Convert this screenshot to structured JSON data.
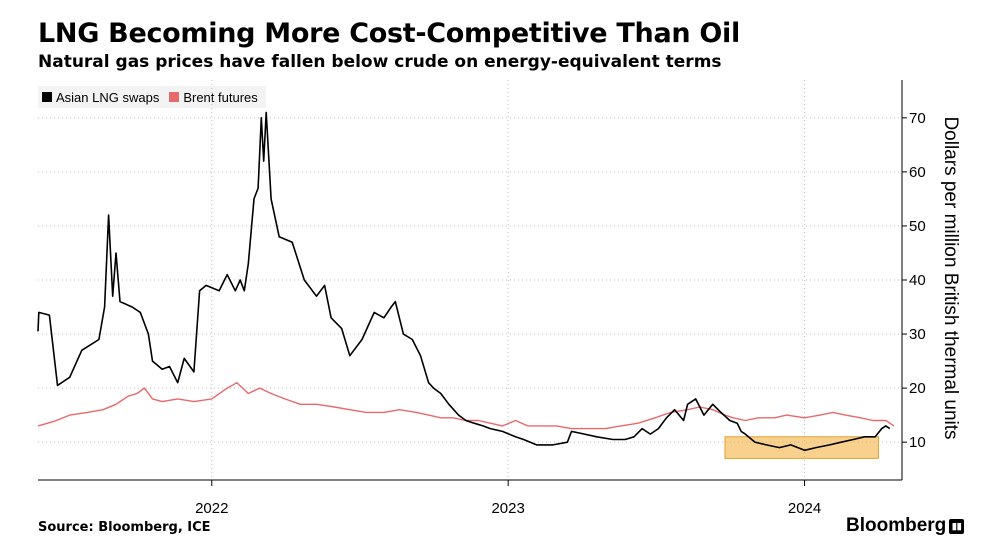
{
  "header": {
    "title": "LNG Becoming More Cost-Competitive Than Oil",
    "subtitle": "Natural gas prices have fallen below crude on energy-equivalent terms"
  },
  "footer": {
    "source": "Source: Bloomberg, ICE",
    "brand": "Bloomberg",
    "brand_icon": "bloomberg-terminal-icon"
  },
  "chart_data": {
    "type": "line",
    "ylabel": "Dollars per million British thermal units",
    "ylim": [
      3,
      77
    ],
    "yticks": [
      10,
      20,
      30,
      40,
      50,
      60,
      70
    ],
    "y_axis_position": "right",
    "xlim": [
      "2021-06-01",
      "2024-04-30"
    ],
    "xticks": [
      {
        "label": "2022",
        "date": "2022-01-01"
      },
      {
        "label": "2023",
        "date": "2023-01-01"
      },
      {
        "label": "2024",
        "date": "2024-01-01"
      }
    ],
    "grid": true,
    "legend_placement": "top-left",
    "highlight": {
      "x": [
        "2023-09-25",
        "2024-04-01"
      ],
      "y": [
        7,
        11
      ],
      "color": "#f5b342"
    },
    "series": [
      {
        "name": "Asian LNG swaps",
        "color": "#000000",
        "points": [
          [
            "2021-06-01",
            30.5
          ],
          [
            "2021-06-02",
            34
          ],
          [
            "2021-06-15",
            33.5
          ],
          [
            "2021-06-25",
            20.5
          ],
          [
            "2021-07-10",
            22
          ],
          [
            "2021-07-25",
            27
          ],
          [
            "2021-08-15",
            29
          ],
          [
            "2021-08-22",
            35
          ],
          [
            "2021-08-27",
            52
          ],
          [
            "2021-09-01",
            37
          ],
          [
            "2021-09-05",
            45
          ],
          [
            "2021-09-10",
            36
          ],
          [
            "2021-09-25",
            35
          ],
          [
            "2021-10-05",
            34
          ],
          [
            "2021-10-15",
            30
          ],
          [
            "2021-10-20",
            25
          ],
          [
            "2021-11-01",
            23.5
          ],
          [
            "2021-11-10",
            24
          ],
          [
            "2021-11-20",
            21
          ],
          [
            "2021-11-28",
            25.5
          ],
          [
            "2021-12-10",
            23
          ],
          [
            "2021-12-17",
            38
          ],
          [
            "2021-12-25",
            39
          ],
          [
            "2022-01-10",
            38
          ],
          [
            "2022-01-20",
            41
          ],
          [
            "2022-01-30",
            38
          ],
          [
            "2022-02-05",
            40
          ],
          [
            "2022-02-10",
            38
          ],
          [
            "2022-02-15",
            43
          ],
          [
            "2022-02-22",
            55
          ],
          [
            "2022-02-27",
            57
          ],
          [
            "2022-03-03",
            70
          ],
          [
            "2022-03-06",
            62
          ],
          [
            "2022-03-09",
            71
          ],
          [
            "2022-03-15",
            55
          ],
          [
            "2022-03-25",
            48
          ],
          [
            "2022-04-10",
            47
          ],
          [
            "2022-04-25",
            40
          ],
          [
            "2022-05-10",
            37
          ],
          [
            "2022-05-20",
            39
          ],
          [
            "2022-05-28",
            33
          ],
          [
            "2022-06-10",
            31
          ],
          [
            "2022-06-20",
            26
          ],
          [
            "2022-07-05",
            29
          ],
          [
            "2022-07-20",
            34
          ],
          [
            "2022-08-01",
            33
          ],
          [
            "2022-08-10",
            35
          ],
          [
            "2022-08-15",
            36
          ],
          [
            "2022-08-25",
            30
          ],
          [
            "2022-09-05",
            29
          ],
          [
            "2022-09-15",
            26
          ],
          [
            "2022-09-25",
            21
          ],
          [
            "2022-10-01",
            20
          ],
          [
            "2022-10-10",
            19
          ],
          [
            "2022-10-20",
            17
          ],
          [
            "2022-11-01",
            15
          ],
          [
            "2022-11-10",
            14
          ],
          [
            "2022-11-20",
            13.5
          ],
          [
            "2022-12-01",
            13
          ],
          [
            "2022-12-10",
            12.5
          ],
          [
            "2022-12-25",
            12
          ],
          [
            "2023-01-10",
            11
          ],
          [
            "2023-01-20",
            10.5
          ],
          [
            "2023-02-05",
            9.5
          ],
          [
            "2023-02-25",
            9.5
          ],
          [
            "2023-03-15",
            10
          ],
          [
            "2023-03-20",
            12
          ],
          [
            "2023-04-05",
            11.5
          ],
          [
            "2023-04-20",
            11
          ],
          [
            "2023-05-10",
            10.5
          ],
          [
            "2023-05-25",
            10.5
          ],
          [
            "2023-06-05",
            11
          ],
          [
            "2023-06-15",
            12.5
          ],
          [
            "2023-06-25",
            11.5
          ],
          [
            "2023-07-05",
            12.5
          ],
          [
            "2023-07-15",
            14.5
          ],
          [
            "2023-07-25",
            16
          ],
          [
            "2023-08-05",
            14
          ],
          [
            "2023-08-10",
            17
          ],
          [
            "2023-08-20",
            18
          ],
          [
            "2023-08-30",
            15
          ],
          [
            "2023-09-10",
            17
          ],
          [
            "2023-09-20",
            15.5
          ],
          [
            "2023-10-01",
            14
          ],
          [
            "2023-10-10",
            13.5
          ],
          [
            "2023-10-15",
            12
          ],
          [
            "2023-10-20",
            11.5
          ],
          [
            "2023-11-01",
            10
          ],
          [
            "2023-11-15",
            9.5
          ],
          [
            "2023-12-01",
            9
          ],
          [
            "2023-12-15",
            9.5
          ],
          [
            "2024-01-01",
            8.5
          ],
          [
            "2024-01-15",
            9
          ],
          [
            "2024-02-01",
            9.5
          ],
          [
            "2024-02-15",
            10
          ],
          [
            "2024-03-01",
            10.5
          ],
          [
            "2024-03-15",
            11
          ],
          [
            "2024-03-28",
            11
          ],
          [
            "2024-04-05",
            12.5
          ],
          [
            "2024-04-10",
            13
          ],
          [
            "2024-04-15",
            12.5
          ]
        ]
      },
      {
        "name": "Brent futures",
        "color": "#e8696c",
        "points": [
          [
            "2021-06-01",
            13
          ],
          [
            "2021-06-20",
            13.8
          ],
          [
            "2021-07-10",
            15
          ],
          [
            "2021-08-01",
            15.5
          ],
          [
            "2021-08-20",
            16
          ],
          [
            "2021-09-05",
            17
          ],
          [
            "2021-09-20",
            18.5
          ],
          [
            "2021-10-01",
            19
          ],
          [
            "2021-10-10",
            20
          ],
          [
            "2021-10-20",
            18
          ],
          [
            "2021-11-01",
            17.5
          ],
          [
            "2021-11-20",
            18
          ],
          [
            "2021-12-10",
            17.5
          ],
          [
            "2022-01-01",
            18
          ],
          [
            "2022-01-20",
            20
          ],
          [
            "2022-02-01",
            21
          ],
          [
            "2022-02-15",
            19
          ],
          [
            "2022-03-01",
            20
          ],
          [
            "2022-03-15",
            19
          ],
          [
            "2022-04-01",
            18
          ],
          [
            "2022-04-20",
            17
          ],
          [
            "2022-05-10",
            17
          ],
          [
            "2022-06-01",
            16.5
          ],
          [
            "2022-06-20",
            16
          ],
          [
            "2022-07-10",
            15.5
          ],
          [
            "2022-08-01",
            15.5
          ],
          [
            "2022-08-20",
            16
          ],
          [
            "2022-09-10",
            15.5
          ],
          [
            "2022-09-25",
            15
          ],
          [
            "2022-10-10",
            14.5
          ],
          [
            "2022-10-25",
            14.5
          ],
          [
            "2022-11-10",
            14
          ],
          [
            "2022-11-25",
            14
          ],
          [
            "2022-12-10",
            13.5
          ],
          [
            "2022-12-25",
            13
          ],
          [
            "2023-01-10",
            14
          ],
          [
            "2023-01-25",
            13
          ],
          [
            "2023-02-10",
            13
          ],
          [
            "2023-03-01",
            13
          ],
          [
            "2023-03-20",
            12.5
          ],
          [
            "2023-04-10",
            12.5
          ],
          [
            "2023-05-01",
            12.5
          ],
          [
            "2023-05-20",
            13
          ],
          [
            "2023-06-10",
            13.5
          ],
          [
            "2023-07-01",
            14.5
          ],
          [
            "2023-07-20",
            15.5
          ],
          [
            "2023-08-10",
            16
          ],
          [
            "2023-08-25",
            16.5
          ],
          [
            "2023-09-10",
            16
          ],
          [
            "2023-09-25",
            15
          ],
          [
            "2023-10-05",
            14.5
          ],
          [
            "2023-10-20",
            14
          ],
          [
            "2023-11-05",
            14.5
          ],
          [
            "2023-11-25",
            14.5
          ],
          [
            "2023-12-10",
            15
          ],
          [
            "2024-01-01",
            14.5
          ],
          [
            "2024-01-20",
            15
          ],
          [
            "2024-02-05",
            15.5
          ],
          [
            "2024-02-20",
            15
          ],
          [
            "2024-03-10",
            14.5
          ],
          [
            "2024-03-25",
            14
          ],
          [
            "2024-04-10",
            14
          ],
          [
            "2024-04-20",
            13
          ]
        ]
      }
    ]
  }
}
